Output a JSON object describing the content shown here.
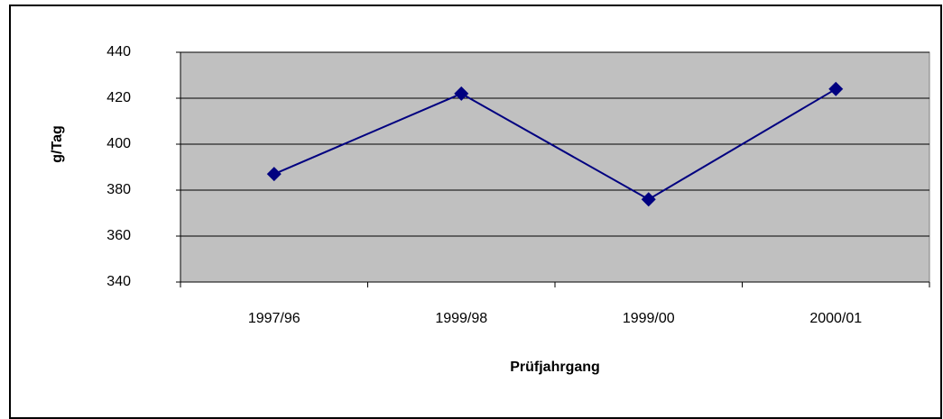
{
  "chart_data": {
    "type": "line",
    "categories": [
      "1997/96",
      "1999/98",
      "1999/00",
      "2000/01"
    ],
    "series": [
      {
        "name": "g/Tag",
        "color": "#000080",
        "values": [
          387,
          422,
          376,
          424
        ]
      }
    ],
    "x_label": "Prüfjahrgang",
    "y_label": "g/Tag",
    "ylim": [
      340,
      440
    ],
    "yticks": [
      340,
      360,
      380,
      400,
      420,
      440
    ],
    "grid": true,
    "plot_background": "#c0c0c0"
  }
}
